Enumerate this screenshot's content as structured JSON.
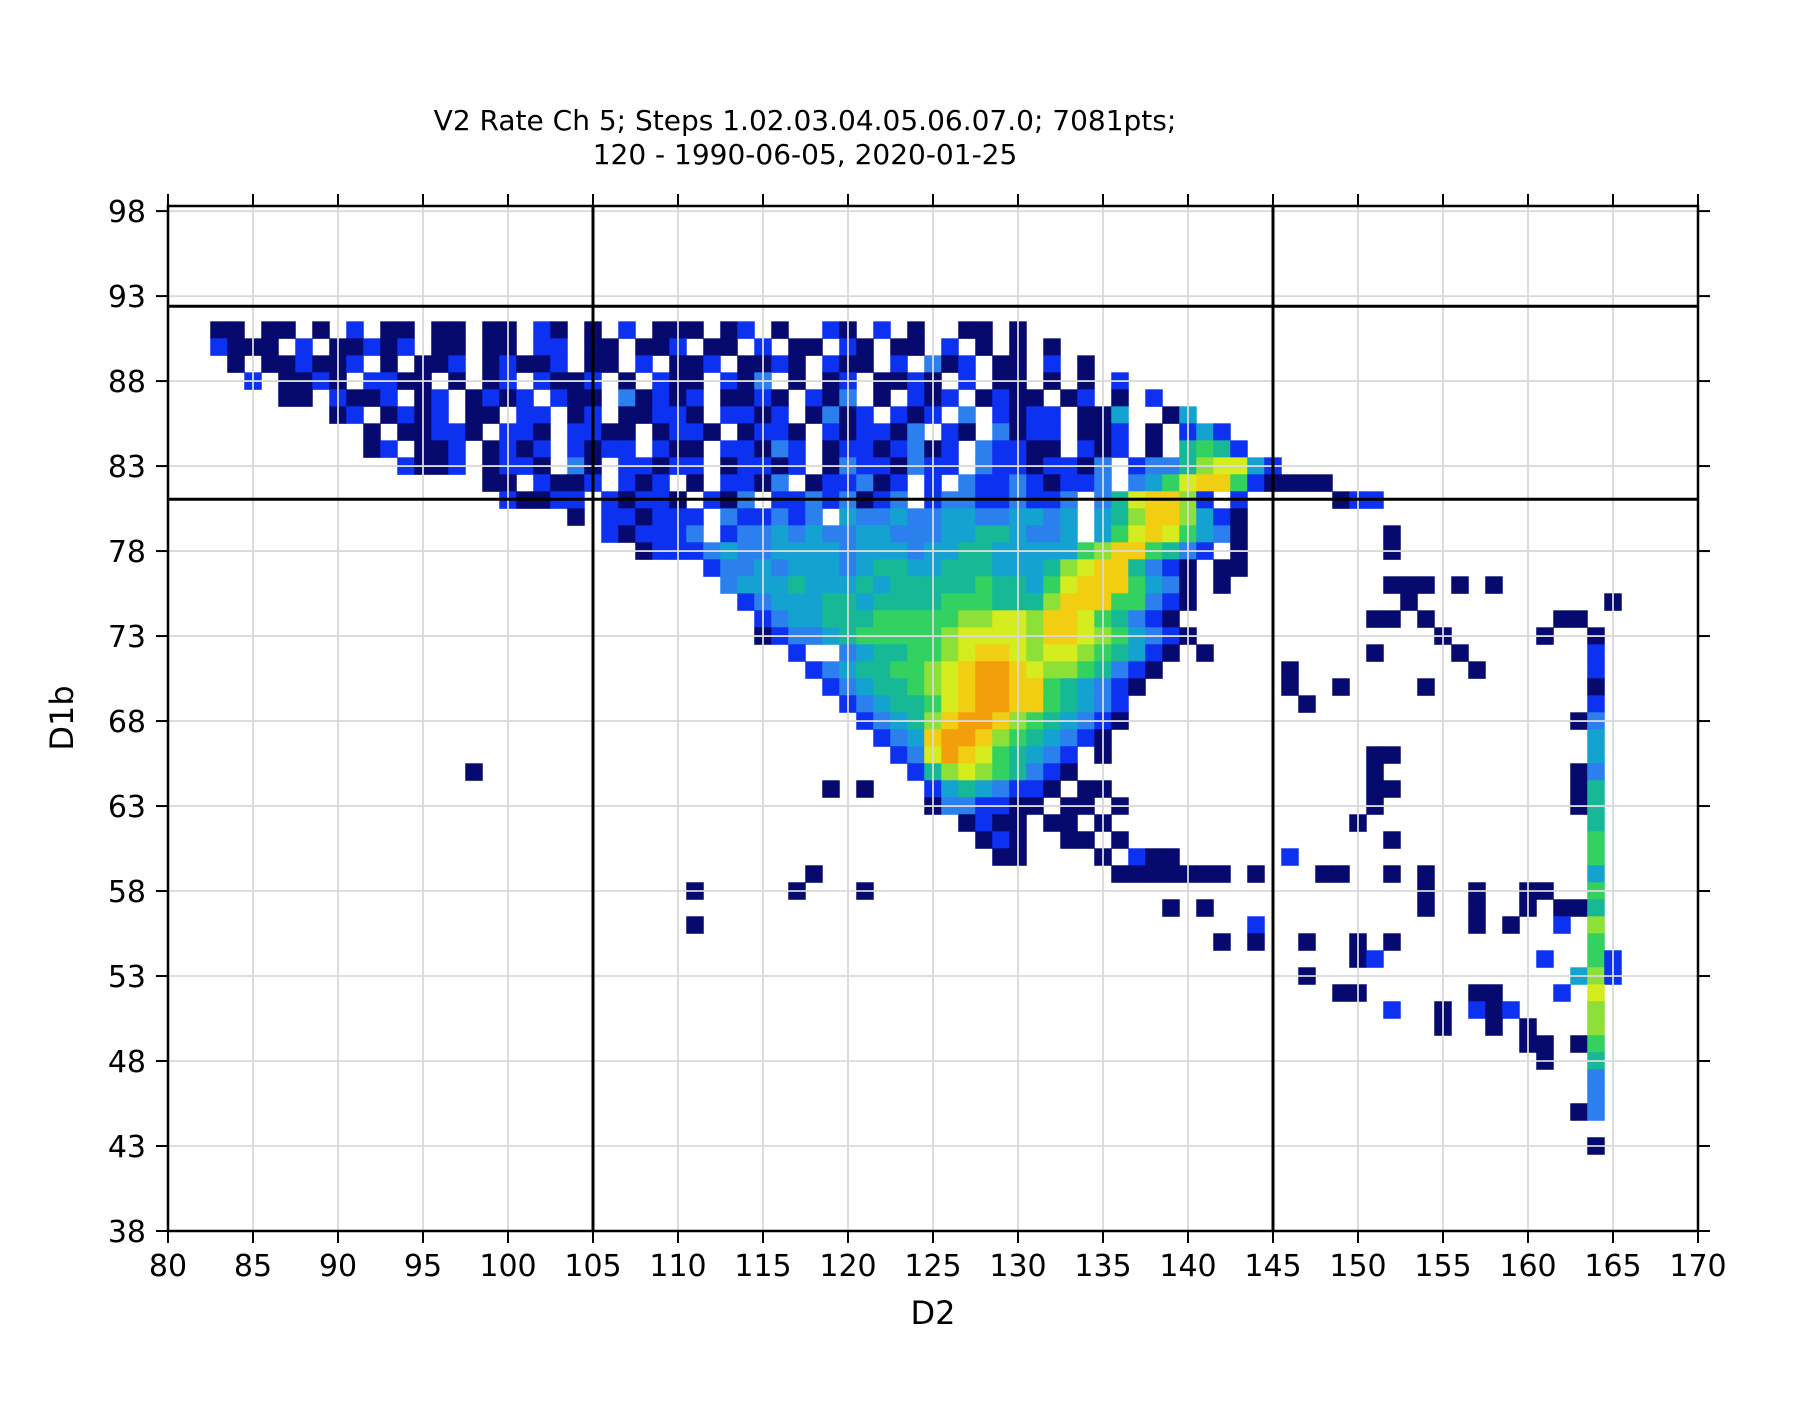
{
  "chart_data": {
    "type": "heatmap",
    "title": "V2 Rate Ch 5; Steps 1.02.03.04.05.06.07.0; 7081pts;",
    "subtitle": "120 - 1990-06-05, 2020-01-25",
    "xlabel": "D2",
    "ylabel": "D1b",
    "xlim": [
      80,
      170
    ],
    "ylim": [
      38,
      98.3
    ],
    "x_ticks": [
      80,
      85,
      90,
      95,
      100,
      105,
      110,
      115,
      120,
      125,
      130,
      135,
      140,
      145,
      150,
      155,
      160,
      165,
      170
    ],
    "y_ticks": [
      38,
      43,
      48,
      53,
      58,
      63,
      68,
      73,
      78,
      83,
      88,
      93,
      98
    ],
    "grid": true,
    "grid_color": "#d9d9d9",
    "annotation_lines": {
      "vlines": [
        105,
        145
      ],
      "hlines": [
        92.4,
        81.05
      ],
      "color": "#000000"
    },
    "bin_size": 1,
    "x_start": 83,
    "palette": {
      "1": "#06096e",
      "2": "#0c31f0",
      "3": "#2b80ee",
      "4": "#14a3d1",
      "5": "#16b896",
      "6": "#33d160",
      "7": "#8ce037",
      "8": "#d5ec1f",
      "9": "#f1ce12",
      "A": "#f39e0b"
    },
    "rows": [
      {
        "y": 91,
        "c": [
          "11.11.1",
          ".2.11.1",
          "1.11.21",
          ".1.2.11",
          "1.12.1.",
          ".21.2.1",
          "..11.1.",
          ".......",
          ".......",
          ".......",
          ".......",
          "......."
        ]
      },
      {
        "y": 90,
        "c": [
          "2111.2.",
          "11212.1",
          "1.11.22",
          ".11.112",
          ".11.2.1",
          "1.21.11",
          ".2.1.1.",
          "1......",
          ".......",
          ".......",
          ".......",
          "......."
        ]
      },
      {
        "y": 89,
        "c": [
          ".1.1121",
          "12.1.11",
          "2.12112",
          ".11.2.1",
          "12.1121",
          ".211.2.",
          "312.11.",
          "2.1....",
          ".......",
          ".......",
          ".......",
          "......."
        ]
      },
      {
        "y": 88,
        "c": [
          "..2.112",
          "1.2211.",
          "1.12.21",
          "12.1.21",
          "1.213.1",
          ".12.112",
          "1.2.11.",
          "1.1.2..",
          ".......",
          ".......",
          ".......",
          "......."
        ]
      },
      {
        "y": 87,
        "c": [
          "....11.",
          "2112.12",
          ".1212.2",
          "11.3121",
          "2.1121.",
          "213.1.2",
          "12.1211",
          ".12.1.2",
          ".......",
          ".......",
          ".......",
          "......."
        ]
      },
      {
        "y": 86,
        "c": [
          ".......",
          "12.1212",
          ".11.22.",
          "12.1122",
          "1.2212.",
          "1312.21",
          "2.3.212",
          "2.114..",
          "14.....",
          ".......",
          ".......",
          "......."
        ]
      },
      {
        "y": 85,
        "c": [
          ".......",
          "..1.112",
          "21.221.",
          "2211.12",
          "21.1221",
          ".212213",
          ".21.312",
          "2.112.1",
          ".242...",
          ".......",
          ".......",
          "......."
        ]
      },
      {
        "y": 84,
        "c": [
          ".......",
          "..12.11",
          "2.1212.",
          "2122.21",
          "1.22132",
          ".122123",
          "12.3221",
          "1.212.1",
          ".5652..",
          ".......",
          ".......",
          "......."
        ]
      },
      {
        "y": 83,
        "c": [
          ".......",
          "....211",
          "2.1221.",
          "31.2212",
          "2.12212",
          ".132213",
          "22.3221",
          "2213.23",
          "3578842",
          ".......",
          ".......",
          "......."
        ]
      },
      {
        "y": 82,
        "c": [
          ".......",
          ".......",
          "..11.21",
          "12.212.",
          "1.2213.",
          "122312.",
          "2.32232",
          "1223.34",
          "6899621",
          "111....",
          ".......",
          "......."
        ]
      },
      {
        "y": 81,
        "c": [
          ".......",
          ".......",
          "...2112",
          "2.21221",
          ".213.22",
          "323123.",
          "2332232",
          "23.3589",
          "972.2..",
          "...122.",
          ".......",
          "......."
        ]
      },
      {
        "y": 80,
        "c": [
          ".......",
          ".......",
          ".......",
          "1.22122",
          "2.32232",
          "3.43343",
          "3443344",
          "34.4579",
          "97421..",
          ".......",
          ".......",
          "......."
        ]
      },
      {
        "y": 79,
        "c": [
          ".......",
          ".......",
          ".......",
          "..21222",
          "3.23343",
          "4334433",
          "3445543",
          "34.4689",
          "86431..",
          "......1",
          ".......",
          "......."
        ]
      },
      {
        "y": 78,
        "c": [
          ".......",
          ".......",
          ".......",
          "....122",
          "2343344",
          "4434443",
          "4455444",
          "4467996",
          "532.1..",
          "......1",
          ".......",
          "......."
        ]
      },
      {
        "y": 77,
        "c": [
          ".......",
          ".......",
          ".......",
          ".......",
          ".233434",
          "4434554",
          "4555444",
          "5789953",
          "21.11..",
          ".......",
          ".......",
          "......."
        ]
      },
      {
        "y": 76,
        "c": [
          ".......",
          ".......",
          ".......",
          ".......",
          "..34445",
          "4445455",
          "5556554",
          "6899964",
          "31.1...",
          "......1",
          "11.1.1.",
          "......."
        ]
      },
      {
        "y": 75,
        "c": [
          ".......",
          ".......",
          ".......",
          ".......",
          "...2344",
          "4554555",
          "5666555",
          "7999663",
          "21.....",
          ".......",
          "1......",
          ".....1."
        ]
      },
      {
        "y": 74,
        "c": [
          ".......",
          ".......",
          ".......",
          ".......",
          "....234",
          "4555666",
          "6677887",
          "9986532",
          "1......",
          ".....11",
          ".1.....",
          "..11..."
        ]
      },
      {
        "y": 73,
        "c": [
          ".......",
          ".......",
          ".......",
          ".......",
          "....123",
          "3456666",
          "6788887",
          "9987643",
          "21.....",
          ".......",
          "..1....",
          ".1..1.."
        ]
      },
      {
        "y": 72,
        "c": [
          ".......",
          ".......",
          ".......",
          ".......",
          "......2",
          "..34556",
          "6789987",
          "8876542",
          "1.1....",
          ".....1.",
          "...1...",
          "....2.."
        ]
      },
      {
        "y": 71,
        "c": [
          ".......",
          ".......",
          ".......",
          ".......",
          ".......",
          "2345566",
          "789AA98",
          "7765321",
          ".......",
          "1......",
          "....1..",
          "....2.."
        ]
      },
      {
        "y": 70,
        "c": [
          ".......",
          ".......",
          ".......",
          ".......",
          ".......",
          ".234556",
          "789AA99",
          "654321.",
          ".......",
          "1..1...",
          ".1.....",
          "....1.."
        ]
      },
      {
        "y": 69,
        "c": [
          ".......",
          ".......",
          ".......",
          ".......",
          ".......",
          "..23455",
          "689AA99",
          "65432..",
          ".......",
          ".1.....",
          ".......",
          "....2.."
        ]
      },
      {
        "y": 68,
        "c": [
          ".......",
          ".......",
          ".......",
          ".......",
          ".......",
          "...2345",
          "79AA976",
          "54321..",
          ".......",
          ".......",
          ".......",
          "...13.."
        ]
      },
      {
        "y": 67,
        "c": [
          ".......",
          ".......",
          ".......",
          ".......",
          ".......",
          "....234",
          "9AA9765",
          "4321...",
          ".......",
          ".......",
          ".......",
          "....4.."
        ]
      },
      {
        "y": 66,
        "c": [
          ".......",
          ".......",
          ".......",
          ".......",
          ".......",
          ".....23",
          "8A98654",
          "32.1...",
          ".......",
          ".....11",
          ".......",
          "....4.."
        ]
      },
      {
        "y": 65,
        "c": [
          ".......",
          ".......",
          ".1.....",
          ".......",
          ".......",
          "......2",
          "5787653",
          "21.....",
          ".......",
          ".....1.",
          ".......",
          "...13.."
        ]
      },
      {
        "y": 64,
        "c": [
          ".......",
          ".......",
          ".......",
          ".......",
          ".......",
          ".1.1...",
          "2454322",
          "1.11...",
          ".......",
          ".....11",
          ".......",
          "...15.."
        ]
      },
      {
        "y": 63,
        "c": [
          ".......",
          ".......",
          ".......",
          ".......",
          ".......",
          ".......",
          "1332211",
          ".11.1..",
          ".......",
          ".....1.",
          ".......",
          "...15.."
        ]
      },
      {
        "y": 62,
        "c": [
          ".......",
          ".......",
          ".......",
          ".......",
          ".......",
          ".......",
          "..1211.",
          "11.1...",
          ".......",
          "....1..",
          ".......",
          "....5.."
        ]
      },
      {
        "y": 61,
        "c": [
          ".......",
          ".......",
          ".......",
          ".......",
          ".......",
          ".......",
          "...121.",
          ".11.1..",
          ".......",
          "......1",
          ".......",
          "....6.."
        ]
      },
      {
        "y": 60,
        "c": [
          ".......",
          ".......",
          ".......",
          ".......",
          ".......",
          ".......",
          "....11.",
          "...1.21",
          "1......",
          "2......",
          ".......",
          "....6.."
        ]
      },
      {
        "y": 59,
        "c": [
          ".......",
          ".......",
          ".......",
          ".......",
          ".......",
          "1......",
          ".......",
          "....111",
          "1111.1.",
          "..11..1",
          ".1.....",
          "....4.."
        ]
      },
      {
        "y": 58,
        "c": [
          ".......",
          ".......",
          ".......",
          ".......",
          "1.....1",
          "...1...",
          ".......",
          ".......",
          ".......",
          ".......",
          ".1..1..",
          "11..6.."
        ]
      },
      {
        "y": 57,
        "c": [
          ".......",
          ".......",
          ".......",
          ".......",
          ".......",
          ".......",
          ".......",
          ".......",
          "1.1....",
          ".......",
          ".1..1..",
          "1.115.."
        ]
      },
      {
        "y": 56,
        "c": [
          ".......",
          ".......",
          ".......",
          ".......",
          "1......",
          ".......",
          ".......",
          ".......",
          ".....2.",
          ".......",
          "....1.1",
          "..2.7.."
        ]
      },
      {
        "y": 55,
        "c": [
          ".......",
          ".......",
          ".......",
          ".......",
          ".......",
          ".......",
          ".......",
          ".......",
          "...1.1.",
          ".1..1.1",
          ".......",
          "....6.."
        ]
      },
      {
        "y": 54,
        "c": [
          ".......",
          ".......",
          ".......",
          ".......",
          ".......",
          ".......",
          ".......",
          ".......",
          ".......",
          "....12.",
          ".......",
          ".2..62."
        ]
      },
      {
        "y": 53,
        "c": [
          ".......",
          ".......",
          ".......",
          ".......",
          ".......",
          ".......",
          ".......",
          ".......",
          ".......",
          ".1.....",
          ".......",
          "...472."
        ]
      },
      {
        "y": 52,
        "c": [
          ".......",
          ".......",
          ".......",
          ".......",
          ".......",
          ".......",
          ".......",
          ".......",
          ".......",
          "...11..",
          "....11.",
          "..2.8.."
        ]
      },
      {
        "y": 51,
        "c": [
          ".......",
          ".......",
          ".......",
          ".......",
          ".......",
          ".......",
          ".......",
          ".......",
          ".......",
          "......2",
          "..1.212",
          "....7.."
        ]
      },
      {
        "y": 50,
        "c": [
          ".......",
          ".......",
          ".......",
          ".......",
          ".......",
          ".......",
          ".......",
          ".......",
          ".......",
          ".......",
          "..1..1.",
          "1...7.."
        ]
      },
      {
        "y": 49,
        "c": [
          ".......",
          ".......",
          ".......",
          ".......",
          ".......",
          ".......",
          ".......",
          ".......",
          ".......",
          ".......",
          ".......",
          "11.16.."
        ]
      },
      {
        "y": 48,
        "c": [
          ".......",
          ".......",
          ".......",
          ".......",
          ".......",
          ".......",
          ".......",
          ".......",
          ".......",
          ".......",
          ".......",
          ".1..5.."
        ]
      },
      {
        "y": 47,
        "c": [
          ".......",
          ".......",
          ".......",
          ".......",
          ".......",
          ".......",
          ".......",
          ".......",
          ".......",
          ".......",
          ".......",
          "....3.."
        ]
      },
      {
        "y": 46,
        "c": [
          ".......",
          ".......",
          ".......",
          ".......",
          ".......",
          ".......",
          ".......",
          ".......",
          ".......",
          ".......",
          ".......",
          "....3.."
        ]
      },
      {
        "y": 45,
        "c": [
          ".......",
          ".......",
          ".......",
          ".......",
          ".......",
          ".......",
          ".......",
          ".......",
          ".......",
          ".......",
          ".......",
          "...13.."
        ]
      },
      {
        "y": 43,
        "c": [
          ".......",
          ".......",
          ".......",
          ".......",
          ".......",
          ".......",
          ".......",
          ".......",
          ".......",
          ".......",
          ".......",
          "....1.."
        ]
      }
    ]
  }
}
